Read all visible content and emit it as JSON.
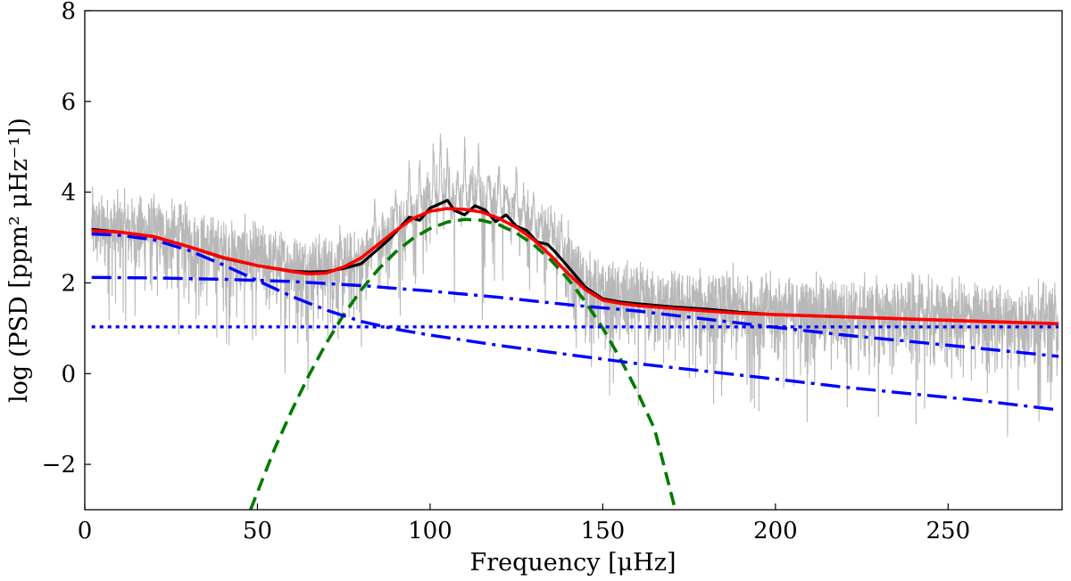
{
  "chart_data": {
    "type": "line",
    "xlabel": "Frequency [μHz]",
    "ylabel": "log (PSD [ppm² μHz⁻¹])",
    "xlim": [
      0,
      283
    ],
    "ylim": [
      -3,
      8
    ],
    "x_ticks": [
      0,
      50,
      100,
      150,
      200,
      250
    ],
    "y_ticks": [
      -2,
      0,
      2,
      4,
      6,
      8
    ],
    "x_tick_labels": [
      "0",
      "50",
      "100",
      "150",
      "200",
      "250"
    ],
    "y_tick_labels": [
      "−2",
      "0",
      "2",
      "4",
      "6",
      "8"
    ],
    "grid": false,
    "colors": {
      "raw": "#b8b8b8",
      "smoothed": "#000000",
      "fit": "#ff0000",
      "background": "#0000ff",
      "gaussian": "#007a00"
    },
    "series": [
      {
        "style": "raw-spectrum",
        "color": "#b8b8b8",
        "envelope_x": [
          2,
          10,
          20,
          30,
          40,
          50,
          60,
          70,
          80,
          85,
          90,
          95,
          100,
          105,
          110,
          115,
          120,
          125,
          130,
          135,
          140,
          145,
          150,
          160,
          180,
          200,
          220,
          240,
          260,
          282
        ],
        "envelope_y": [
          3.15,
          3.1,
          3.05,
          2.85,
          2.6,
          2.45,
          2.3,
          2.25,
          2.35,
          2.7,
          3.0,
          3.3,
          3.5,
          3.6,
          3.62,
          3.6,
          3.5,
          3.35,
          3.05,
          2.7,
          2.3,
          1.9,
          1.6,
          1.5,
          1.38,
          1.3,
          1.25,
          1.2,
          1.15,
          1.1
        ],
        "peaks_x": [
          84,
          90,
          94,
          97,
          101,
          103,
          105,
          108,
          110,
          112,
          114,
          117,
          120,
          122,
          125,
          127,
          130,
          132,
          135,
          138
        ],
        "peaks_y": [
          4.0,
          4.3,
          4.9,
          5.0,
          5.3,
          5.55,
          5.1,
          4.6,
          5.4,
          4.4,
          5.2,
          4.5,
          4.9,
          4.2,
          4.7,
          4.0,
          4.2,
          3.7,
          3.8,
          3.6
        ]
      },
      {
        "style": "smoothed",
        "color": "#000000",
        "x": [
          2,
          10,
          20,
          30,
          40,
          50,
          60,
          65,
          70,
          75,
          80,
          85,
          88,
          91,
          94,
          97,
          100,
          103,
          105,
          107,
          110,
          113,
          116,
          119,
          122,
          125,
          128,
          131,
          134,
          136,
          140,
          145,
          150,
          155,
          160,
          170,
          180,
          190,
          200,
          220,
          240,
          260,
          282
        ],
        "y": [
          3.18,
          3.12,
          3.02,
          2.8,
          2.55,
          2.38,
          2.26,
          2.24,
          2.25,
          2.32,
          2.42,
          2.75,
          2.95,
          3.2,
          3.45,
          3.38,
          3.65,
          3.75,
          3.82,
          3.6,
          3.5,
          3.7,
          3.6,
          3.35,
          3.5,
          3.25,
          3.15,
          2.9,
          2.85,
          2.7,
          2.35,
          1.9,
          1.65,
          1.58,
          1.54,
          1.47,
          1.42,
          1.35,
          1.3,
          1.25,
          1.2,
          1.15,
          1.1
        ]
      },
      {
        "style": "fit",
        "color": "#ff0000",
        "x": [
          2,
          10,
          20,
          30,
          40,
          50,
          60,
          65,
          70,
          75,
          80,
          85,
          90,
          95,
          100,
          105,
          110,
          115,
          120,
          125,
          130,
          135,
          140,
          145,
          150,
          155,
          160,
          170,
          180,
          190,
          200,
          220,
          240,
          260,
          282
        ],
        "y": [
          3.15,
          3.12,
          3.02,
          2.8,
          2.56,
          2.38,
          2.25,
          2.2,
          2.22,
          2.35,
          2.55,
          2.85,
          3.15,
          3.42,
          3.58,
          3.64,
          3.62,
          3.56,
          3.42,
          3.22,
          2.95,
          2.6,
          2.2,
          1.85,
          1.62,
          1.55,
          1.5,
          1.44,
          1.38,
          1.33,
          1.3,
          1.25,
          1.2,
          1.15,
          1.1
        ]
      },
      {
        "style": "background-component-1",
        "color": "#0000ff",
        "dash": "dash-dot",
        "x": [
          2,
          10,
          20,
          30,
          40,
          50,
          60,
          70,
          80,
          90,
          100,
          120,
          140,
          160,
          180,
          200,
          220,
          240,
          260,
          282
        ],
        "y": [
          3.08,
          3.05,
          2.95,
          2.72,
          2.4,
          2.05,
          1.7,
          1.4,
          1.15,
          0.98,
          0.85,
          0.62,
          0.42,
          0.22,
          0.05,
          -0.12,
          -0.3,
          -0.45,
          -0.6,
          -0.8
        ]
      },
      {
        "style": "background-component-2",
        "color": "#0000ff",
        "dash": "dash-dot",
        "x": [
          2,
          20,
          40,
          60,
          80,
          100,
          120,
          140,
          160,
          180,
          200,
          220,
          240,
          260,
          282
        ],
        "y": [
          2.12,
          2.11,
          2.08,
          2.03,
          1.94,
          1.82,
          1.68,
          1.52,
          1.38,
          1.2,
          1.02,
          0.85,
          0.7,
          0.55,
          0.38
        ]
      },
      {
        "style": "white-noise",
        "color": "#0000ff",
        "dash": "dotted",
        "x": [
          2,
          282
        ],
        "y": [
          1.03,
          1.03
        ]
      },
      {
        "style": "gaussian-envelope",
        "color": "#007a00",
        "dash": "dashed",
        "x": [
          48,
          55,
          60,
          65,
          70,
          75,
          80,
          85,
          90,
          95,
          100,
          105,
          110,
          115,
          120,
          125,
          130,
          135,
          140,
          145,
          150,
          155,
          160,
          165,
          171
        ],
        "y": [
          -3.0,
          -1.65,
          -0.8,
          -0.02,
          0.68,
          1.3,
          1.84,
          2.3,
          2.68,
          2.98,
          3.2,
          3.34,
          3.4,
          3.38,
          3.28,
          3.1,
          2.84,
          2.5,
          2.08,
          1.58,
          1.0,
          0.34,
          -0.4,
          -1.22,
          -3.0
        ]
      }
    ]
  }
}
